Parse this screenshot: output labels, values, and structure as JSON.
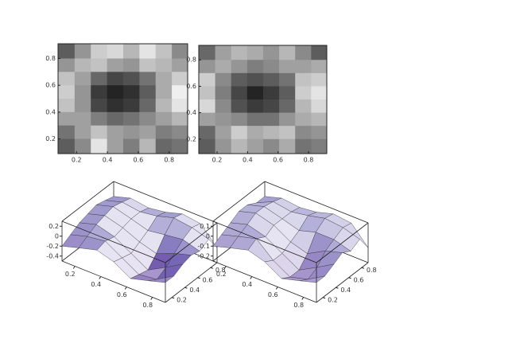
{
  "chart_data": [
    {
      "type": "contour",
      "x": [
        0.135,
        0.24,
        0.345,
        0.45,
        0.555,
        0.66,
        0.765,
        0.87
      ],
      "y": [
        0.85,
        0.75,
        0.65,
        0.55,
        0.45,
        0.35,
        0.25,
        0.15
      ],
      "z": [
        [
          0.3,
          0.55,
          0.8,
          0.85,
          0.7,
          0.9,
          0.75,
          0.5
        ],
        [
          0.55,
          0.7,
          0.75,
          0.6,
          0.55,
          0.75,
          0.7,
          0.6
        ],
        [
          0.75,
          0.6,
          0.35,
          0.2,
          0.25,
          0.4,
          0.65,
          0.8
        ],
        [
          0.8,
          0.55,
          0.15,
          0.05,
          0.1,
          0.3,
          0.65,
          0.95
        ],
        [
          0.75,
          0.55,
          0.2,
          0.1,
          0.15,
          0.35,
          0.7,
          0.9
        ],
        [
          0.6,
          0.6,
          0.45,
          0.35,
          0.4,
          0.5,
          0.6,
          0.7
        ],
        [
          0.4,
          0.6,
          0.75,
          0.6,
          0.55,
          0.6,
          0.45,
          0.5
        ],
        [
          0.3,
          0.5,
          0.9,
          0.6,
          0.45,
          0.7,
          0.35,
          0.4
        ]
      ],
      "zlim": [
        0,
        1
      ],
      "xlim": [
        0.08,
        0.92
      ],
      "ylim": [
        0.09,
        0.91
      ],
      "xticks": [
        0.2,
        0.4,
        0.6,
        0.8
      ],
      "yticks": [
        0.2,
        0.4,
        0.6,
        0.8
      ]
    },
    {
      "type": "contour",
      "x": [
        0.135,
        0.24,
        0.345,
        0.45,
        0.555,
        0.66,
        0.765,
        0.87
      ],
      "y": [
        0.85,
        0.75,
        0.65,
        0.55,
        0.45,
        0.35,
        0.25,
        0.15
      ],
      "z": [
        [
          0.35,
          0.6,
          0.7,
          0.65,
          0.55,
          0.7,
          0.5,
          0.3
        ],
        [
          0.55,
          0.65,
          0.55,
          0.45,
          0.5,
          0.6,
          0.6,
          0.65
        ],
        [
          0.8,
          0.5,
          0.3,
          0.25,
          0.3,
          0.4,
          0.75,
          0.8
        ],
        [
          0.75,
          0.45,
          0.2,
          0.05,
          0.15,
          0.3,
          0.8,
          0.9
        ],
        [
          0.85,
          0.5,
          0.25,
          0.15,
          0.2,
          0.35,
          0.7,
          0.85
        ],
        [
          0.6,
          0.55,
          0.5,
          0.4,
          0.4,
          0.55,
          0.65,
          0.7
        ],
        [
          0.35,
          0.6,
          0.8,
          0.65,
          0.7,
          0.75,
          0.5,
          0.55
        ],
        [
          0.3,
          0.55,
          0.7,
          0.6,
          0.5,
          0.65,
          0.4,
          0.45
        ]
      ],
      "zlim": [
        0,
        1
      ],
      "xlim": [
        0.08,
        0.92
      ],
      "ylim": [
        0.09,
        0.91
      ],
      "xticks": [
        0.2,
        0.4,
        0.6,
        0.8
      ],
      "yticks": [
        0.2,
        0.4,
        0.6,
        0.8
      ]
    },
    {
      "type": "surface",
      "x": [
        0.1,
        0.23,
        0.37,
        0.5,
        0.63,
        0.77,
        0.9
      ],
      "y": [
        0.1,
        0.23,
        0.37,
        0.5,
        0.63,
        0.77,
        0.9
      ],
      "z": [
        [
          -0.2,
          -0.1,
          0.0,
          -0.1,
          -0.3,
          -0.2,
          -0.1
        ],
        [
          -0.1,
          0.0,
          0.05,
          -0.15,
          -0.35,
          -0.3,
          -0.1
        ],
        [
          0.0,
          0.1,
          0.0,
          -0.2,
          -0.4,
          -0.2,
          0.0
        ],
        [
          0.05,
          0.15,
          0.05,
          -0.1,
          -0.2,
          -0.05,
          0.05
        ],
        [
          0.1,
          0.2,
          0.1,
          0.0,
          0.05,
          0.1,
          0.0
        ],
        [
          0.05,
          0.15,
          0.1,
          0.15,
          0.25,
          0.2,
          0.1
        ],
        [
          0.0,
          0.1,
          0.05,
          0.1,
          0.2,
          0.15,
          -0.2
        ]
      ],
      "xlim": [
        0.1,
        0.9
      ],
      "ylim": [
        0.1,
        0.9
      ],
      "zlim": [
        -0.5,
        0.3
      ],
      "xticks": [
        0.2,
        0.4,
        0.6,
        0.8
      ],
      "yticks": [
        0.2,
        0.4,
        0.6,
        0.8
      ],
      "zticks": [
        -0.4,
        -0.2,
        0,
        0.2
      ]
    },
    {
      "type": "surface",
      "x": [
        0.1,
        0.23,
        0.37,
        0.5,
        0.63,
        0.77,
        0.9
      ],
      "y": [
        0.1,
        0.23,
        0.37,
        0.5,
        0.63,
        0.77,
        0.9
      ],
      "z": [
        [
          -0.1,
          -0.05,
          0.0,
          -0.05,
          -0.15,
          -0.1,
          -0.05
        ],
        [
          -0.05,
          0.0,
          0.05,
          -0.1,
          -0.2,
          -0.15,
          -0.05
        ],
        [
          0.0,
          0.05,
          0.0,
          -0.1,
          -0.2,
          -0.1,
          0.0
        ],
        [
          0.05,
          0.1,
          0.05,
          -0.05,
          -0.1,
          0.0,
          0.05
        ],
        [
          0.05,
          0.1,
          0.05,
          0.0,
          0.05,
          0.05,
          0.0
        ],
        [
          0.0,
          0.08,
          0.05,
          0.08,
          0.12,
          0.1,
          0.05
        ],
        [
          0.0,
          0.05,
          0.03,
          0.05,
          0.1,
          0.08,
          -0.1
        ]
      ],
      "xlim": [
        0.1,
        0.9
      ],
      "ylim": [
        0.1,
        0.9
      ],
      "zlim": [
        -0.25,
        0.15
      ],
      "xticks": [
        0.2,
        0.4,
        0.6,
        0.8
      ],
      "yticks": [
        0.2,
        0.4,
        0.6,
        0.8
      ],
      "zticks": [
        -0.2,
        -0.1,
        0,
        0.1
      ]
    }
  ]
}
